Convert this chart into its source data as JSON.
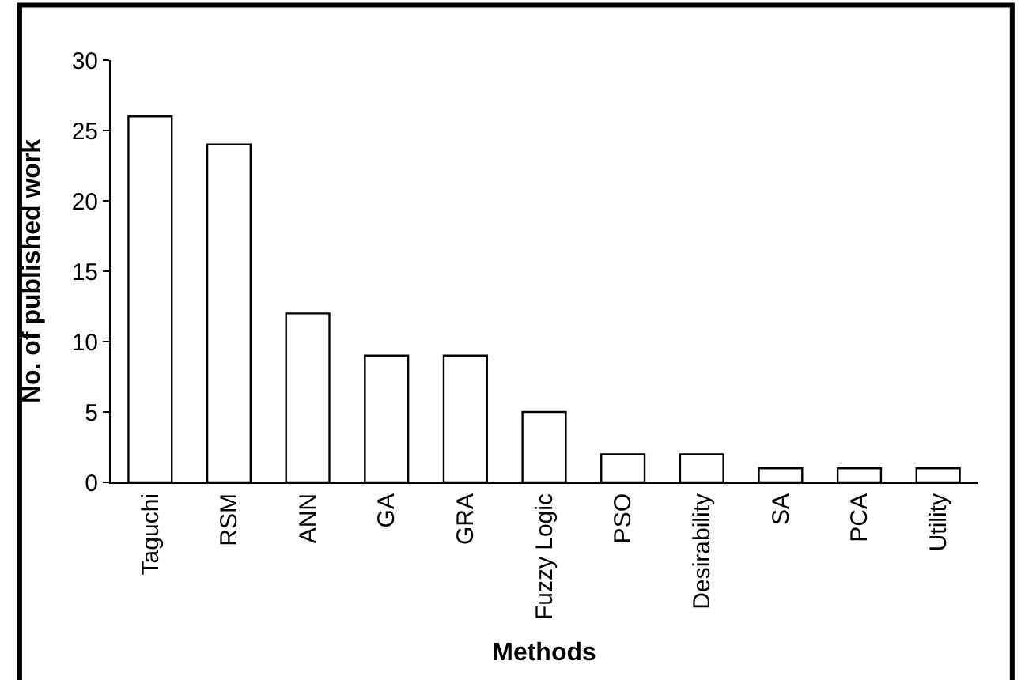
{
  "chart_data": {
    "type": "bar",
    "xlabel": "Methods",
    "ylabel": "No. of published work",
    "categories": [
      "Taguchi",
      "RSM",
      "ANN",
      "GA",
      "GRA",
      "Fuzzy Logic",
      "PSO",
      "Desirability",
      "SA",
      "PCA",
      "Utility"
    ],
    "values": [
      26,
      24,
      12,
      9,
      9,
      5,
      2,
      2,
      1,
      1,
      1
    ],
    "color": "#ffffff",
    "ylim": [
      0,
      30
    ],
    "yticks": [
      0,
      5,
      10,
      15,
      20,
      25,
      30
    ],
    "grid": false,
    "legend": false
  }
}
